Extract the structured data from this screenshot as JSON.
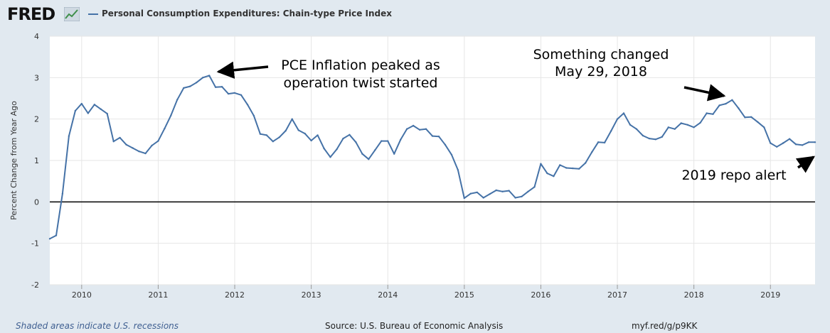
{
  "header": {
    "logo_text": "FRED",
    "legend_label": "Personal Consumption Expenditures: Chain-type Price Index",
    "series_color": "#4572a7"
  },
  "footer": {
    "recession_note": "Shaded areas indicate U.S. recessions",
    "source": "Source: U.S. Bureau of Economic Analysis",
    "short_url": "myf.red/g/p9KK"
  },
  "chart_data": {
    "type": "line",
    "ylabel": "Percent Change from Year Ago",
    "xlabel": "",
    "ylim": [
      -2,
      4
    ],
    "yticks": [
      4,
      3,
      2,
      1,
      0,
      -1,
      -2
    ],
    "xlim": [
      "2009-08",
      "2019-08"
    ],
    "xticks": [
      "2010",
      "2011",
      "2012",
      "2013",
      "2014",
      "2015",
      "2016",
      "2017",
      "2018",
      "2019"
    ],
    "grid": true,
    "zero_line": true,
    "series": [
      {
        "color": "#4572a7",
        "points": [
          [
            "2009-08",
            -0.89
          ],
          [
            "2009-09",
            -0.81
          ],
          [
            "2009-10",
            0.2
          ],
          [
            "2009-11",
            1.59
          ],
          [
            "2009-12",
            2.2
          ],
          [
            "2010-01",
            2.37
          ],
          [
            "2010-02",
            2.14
          ],
          [
            "2010-03",
            2.35
          ],
          [
            "2010-04",
            2.24
          ],
          [
            "2010-05",
            2.13
          ],
          [
            "2010-06",
            1.46
          ],
          [
            "2010-07",
            1.55
          ],
          [
            "2010-08",
            1.38
          ],
          [
            "2010-09",
            1.3
          ],
          [
            "2010-10",
            1.22
          ],
          [
            "2010-11",
            1.17
          ],
          [
            "2010-12",
            1.36
          ],
          [
            "2011-01",
            1.47
          ],
          [
            "2011-02",
            1.77
          ],
          [
            "2011-03",
            2.09
          ],
          [
            "2011-04",
            2.47
          ],
          [
            "2011-05",
            2.75
          ],
          [
            "2011-06",
            2.79
          ],
          [
            "2011-07",
            2.88
          ],
          [
            "2011-08",
            3.0
          ],
          [
            "2011-09",
            3.05
          ],
          [
            "2011-10",
            2.77
          ],
          [
            "2011-11",
            2.78
          ],
          [
            "2011-12",
            2.61
          ],
          [
            "2012-01",
            2.63
          ],
          [
            "2012-02",
            2.58
          ],
          [
            "2012-03",
            2.35
          ],
          [
            "2012-04",
            2.08
          ],
          [
            "2012-05",
            1.64
          ],
          [
            "2012-06",
            1.61
          ],
          [
            "2012-07",
            1.46
          ],
          [
            "2012-08",
            1.56
          ],
          [
            "2012-09",
            1.72
          ],
          [
            "2012-10",
            2.0
          ],
          [
            "2012-11",
            1.73
          ],
          [
            "2012-12",
            1.65
          ],
          [
            "2013-01",
            1.48
          ],
          [
            "2013-02",
            1.61
          ],
          [
            "2013-03",
            1.29
          ],
          [
            "2013-04",
            1.08
          ],
          [
            "2013-05",
            1.27
          ],
          [
            "2013-06",
            1.53
          ],
          [
            "2013-07",
            1.62
          ],
          [
            "2013-08",
            1.44
          ],
          [
            "2013-09",
            1.16
          ],
          [
            "2013-10",
            1.03
          ],
          [
            "2013-11",
            1.25
          ],
          [
            "2013-12",
            1.47
          ],
          [
            "2014-01",
            1.47
          ],
          [
            "2014-02",
            1.16
          ],
          [
            "2014-03",
            1.5
          ],
          [
            "2014-04",
            1.76
          ],
          [
            "2014-05",
            1.84
          ],
          [
            "2014-06",
            1.74
          ],
          [
            "2014-07",
            1.76
          ],
          [
            "2014-08",
            1.59
          ],
          [
            "2014-09",
            1.58
          ],
          [
            "2014-10",
            1.38
          ],
          [
            "2014-11",
            1.14
          ],
          [
            "2014-12",
            0.77
          ],
          [
            "2015-01",
            0.09
          ],
          [
            "2015-02",
            0.2
          ],
          [
            "2015-03",
            0.23
          ],
          [
            "2015-04",
            0.1
          ],
          [
            "2015-05",
            0.19
          ],
          [
            "2015-06",
            0.28
          ],
          [
            "2015-07",
            0.25
          ],
          [
            "2015-08",
            0.27
          ],
          [
            "2015-09",
            0.1
          ],
          [
            "2015-10",
            0.13
          ],
          [
            "2015-11",
            0.25
          ],
          [
            "2015-12",
            0.36
          ],
          [
            "2016-01",
            0.92
          ],
          [
            "2016-02",
            0.69
          ],
          [
            "2016-03",
            0.62
          ],
          [
            "2016-04",
            0.89
          ],
          [
            "2016-05",
            0.82
          ],
          [
            "2016-06",
            0.81
          ],
          [
            "2016-07",
            0.8
          ],
          [
            "2016-08",
            0.94
          ],
          [
            "2016-09",
            1.2
          ],
          [
            "2016-10",
            1.44
          ],
          [
            "2016-11",
            1.43
          ],
          [
            "2016-12",
            1.71
          ],
          [
            "2017-01",
            2.0
          ],
          [
            "2017-02",
            2.14
          ],
          [
            "2017-03",
            1.86
          ],
          [
            "2017-04",
            1.76
          ],
          [
            "2017-05",
            1.6
          ],
          [
            "2017-06",
            1.53
          ],
          [
            "2017-07",
            1.51
          ],
          [
            "2017-08",
            1.57
          ],
          [
            "2017-09",
            1.8
          ],
          [
            "2017-10",
            1.76
          ],
          [
            "2017-11",
            1.9
          ],
          [
            "2017-12",
            1.86
          ],
          [
            "2018-01",
            1.8
          ],
          [
            "2018-02",
            1.91
          ],
          [
            "2018-03",
            2.14
          ],
          [
            "2018-04",
            2.12
          ],
          [
            "2018-05",
            2.33
          ],
          [
            "2018-06",
            2.37
          ],
          [
            "2018-07",
            2.46
          ],
          [
            "2018-08",
            2.26
          ],
          [
            "2018-09",
            2.04
          ],
          [
            "2018-10",
            2.05
          ],
          [
            "2018-11",
            1.93
          ],
          [
            "2018-12",
            1.8
          ],
          [
            "2019-01",
            1.42
          ],
          [
            "2019-02",
            1.33
          ],
          [
            "2019-03",
            1.42
          ],
          [
            "2019-04",
            1.52
          ],
          [
            "2019-05",
            1.39
          ],
          [
            "2019-06",
            1.37
          ],
          [
            "2019-07",
            1.44
          ],
          [
            "2019-08",
            1.44
          ]
        ]
      }
    ],
    "annotations": [
      {
        "lines": [
          "PCE Inflation peaked as",
          "operation twist started"
        ],
        "arrow_target": [
          "2011-09",
          3.05
        ]
      },
      {
        "lines": [
          "Something changed",
          "May 29, 2018"
        ],
        "arrow_target": [
          "2018-06",
          2.4
        ]
      },
      {
        "lines": [
          "2019 repo alert"
        ],
        "arrow_target": [
          "2019-08",
          1.15
        ]
      }
    ]
  }
}
